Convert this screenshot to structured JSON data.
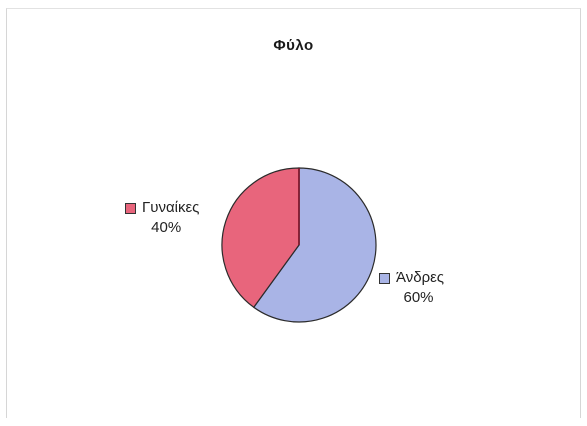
{
  "chart_data": {
    "type": "pie",
    "title": "Φύλο",
    "slices": [
      {
        "name": "Άνδρες",
        "value": 60,
        "label": "60%",
        "color": "#a9b4e6"
      },
      {
        "name": "Γυναίκες",
        "value": 40,
        "label": "40%",
        "color": "#e8657c"
      }
    ],
    "start_angle_deg": 0,
    "direction": "clockwise",
    "legend": "labels-beside-slices"
  }
}
